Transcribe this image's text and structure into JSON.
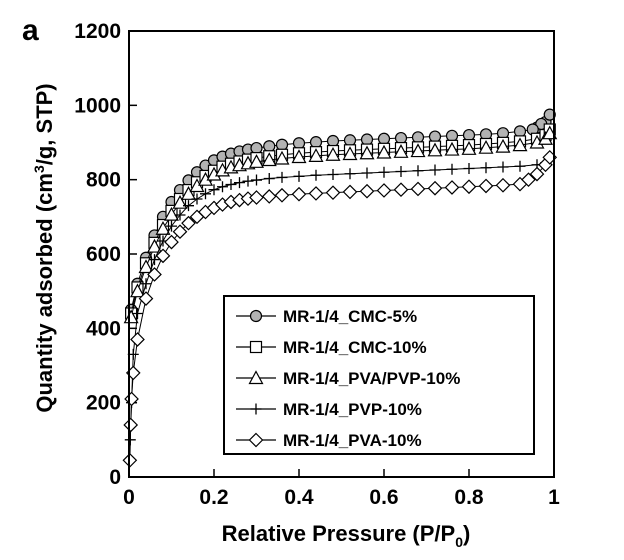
{
  "panel_label": "a",
  "chart_data": {
    "type": "scatter",
    "title": "",
    "xlabel": "Relative Pressure (P/P",
    "xlabel_sub": "0",
    "xlabel_end": ")",
    "ylabel": "Quantity adsorbed (cm",
    "ylabel_sup": "3",
    "ylabel_end": "/g, STP)",
    "xlim": [
      0,
      1
    ],
    "ylim": [
      0,
      1200
    ],
    "x_ticks": [
      0,
      0.2,
      0.4,
      0.6,
      0.8,
      1
    ],
    "x_tick_labels": [
      "0",
      "0.2",
      "0.4",
      "0.6",
      "0.8",
      "1"
    ],
    "y_ticks": [
      0,
      200,
      400,
      600,
      800,
      1000,
      1200
    ],
    "y_tick_labels": [
      "0",
      "200",
      "400",
      "600",
      "800",
      "1000",
      "1200"
    ],
    "grid": false,
    "legend_position": "bottom-right",
    "series": [
      {
        "name": "MR-1/4_CMC-5%",
        "marker": "circle",
        "fill": "#b3b3b3",
        "x": [
          0.005,
          0.02,
          0.04,
          0.06,
          0.08,
          0.1,
          0.12,
          0.14,
          0.16,
          0.18,
          0.2,
          0.22,
          0.24,
          0.26,
          0.28,
          0.3,
          0.33,
          0.36,
          0.4,
          0.44,
          0.48,
          0.52,
          0.56,
          0.6,
          0.64,
          0.68,
          0.72,
          0.76,
          0.8,
          0.84,
          0.88,
          0.92,
          0.96,
          0.98,
          0.99,
          0.97,
          0.95
        ],
        "values": [
          450,
          520,
          590,
          650,
          700,
          740,
          772,
          798,
          820,
          838,
          852,
          862,
          870,
          876,
          881,
          885,
          890,
          894,
          898,
          901,
          904,
          906,
          908,
          910,
          912,
          914,
          916,
          918,
          920,
          922,
          925,
          930,
          940,
          955,
          975,
          950,
          935
        ]
      },
      {
        "name": "MR-1/4_CMC-10%",
        "marker": "square",
        "fill": "#ffffff",
        "x": [
          0.005,
          0.02,
          0.04,
          0.06,
          0.08,
          0.1,
          0.12,
          0.14,
          0.16,
          0.18,
          0.2,
          0.22,
          0.24,
          0.26,
          0.28,
          0.3,
          0.33,
          0.36,
          0.4,
          0.44,
          0.48,
          0.52,
          0.56,
          0.6,
          0.64,
          0.68,
          0.72,
          0.76,
          0.8,
          0.84,
          0.88,
          0.92,
          0.96,
          0.98,
          0.99
        ],
        "values": [
          440,
          510,
          575,
          630,
          678,
          716,
          748,
          772,
          793,
          810,
          824,
          835,
          843,
          849,
          854,
          858,
          863,
          867,
          871,
          874,
          877,
          879,
          881,
          883,
          885,
          887,
          889,
          891,
          893,
          896,
          899,
          903,
          910,
          920,
          935
        ]
      },
      {
        "name": "MR-1/4_PVA/PVP-10%",
        "marker": "triangle",
        "fill": "#ffffff",
        "x": [
          0.005,
          0.02,
          0.04,
          0.06,
          0.08,
          0.1,
          0.12,
          0.14,
          0.16,
          0.18,
          0.2,
          0.22,
          0.24,
          0.26,
          0.28,
          0.3,
          0.33,
          0.36,
          0.4,
          0.44,
          0.48,
          0.52,
          0.56,
          0.6,
          0.64,
          0.68,
          0.72,
          0.76,
          0.8,
          0.84,
          0.88,
          0.92,
          0.96,
          0.98,
          0.99
        ],
        "values": [
          430,
          500,
          565,
          620,
          668,
          706,
          738,
          762,
          783,
          800,
          814,
          825,
          833,
          839,
          844,
          848,
          853,
          857,
          861,
          864,
          867,
          869,
          871,
          873,
          875,
          877,
          879,
          881,
          883,
          886,
          889,
          893,
          900,
          910,
          925
        ]
      },
      {
        "name": "MR-1/4_PVP-10%",
        "marker": "plus",
        "fill": "none",
        "x": [
          0.003,
          0.006,
          0.01,
          0.02,
          0.04,
          0.06,
          0.08,
          0.1,
          0.12,
          0.14,
          0.16,
          0.18,
          0.2,
          0.22,
          0.24,
          0.26,
          0.28,
          0.3,
          0.33,
          0.36,
          0.4,
          0.44,
          0.48,
          0.52,
          0.56,
          0.6,
          0.64,
          0.68,
          0.72,
          0.76,
          0.8,
          0.84,
          0.88,
          0.92,
          0.96,
          0.98,
          0.99
        ],
        "values": [
          100,
          200,
          330,
          440,
          520,
          585,
          635,
          675,
          705,
          730,
          748,
          762,
          773,
          781,
          787,
          792,
          796,
          799,
          803,
          806,
          809,
          812,
          814,
          816,
          818,
          820,
          822,
          824,
          826,
          828,
          830,
          832,
          834,
          836,
          840,
          845,
          860
        ]
      },
      {
        "name": "MR-1/4_PVA-10%",
        "marker": "diamond",
        "fill": "#ffffff",
        "x": [
          0.002,
          0.004,
          0.006,
          0.01,
          0.02,
          0.04,
          0.06,
          0.08,
          0.1,
          0.12,
          0.14,
          0.16,
          0.18,
          0.2,
          0.22,
          0.24,
          0.26,
          0.28,
          0.3,
          0.33,
          0.36,
          0.4,
          0.44,
          0.48,
          0.52,
          0.56,
          0.6,
          0.64,
          0.68,
          0.72,
          0.76,
          0.8,
          0.84,
          0.88,
          0.92,
          0.94,
          0.96,
          0.98,
          0.99
        ],
        "values": [
          45,
          140,
          210,
          280,
          370,
          480,
          545,
          595,
          632,
          660,
          683,
          700,
          713,
          724,
          733,
          740,
          745,
          749,
          752,
          755,
          758,
          761,
          763,
          765,
          767,
          769,
          771,
          773,
          775,
          777,
          779,
          781,
          783,
          785,
          788,
          800,
          815,
          840,
          860
        ]
      }
    ]
  }
}
